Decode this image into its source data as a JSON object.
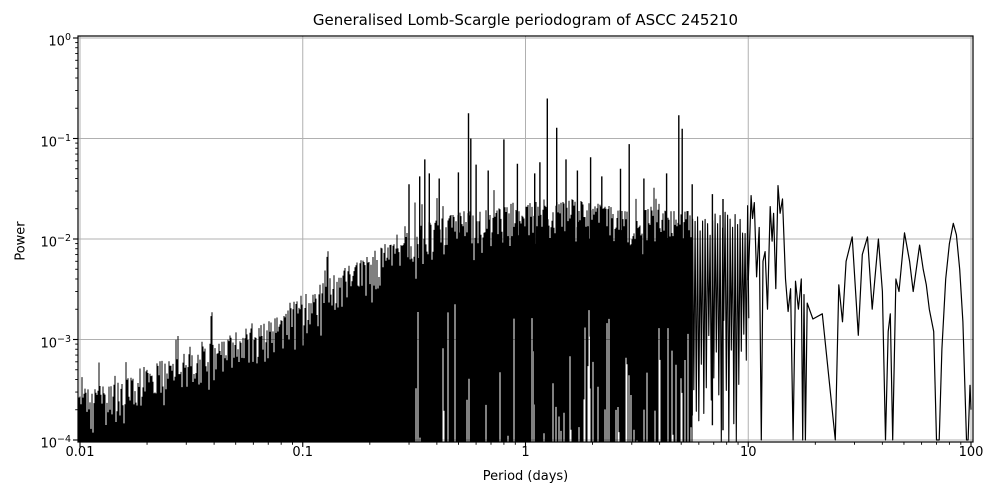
{
  "chart_data": {
    "type": "line",
    "title": "Generalised Lomb-Scargle periodogram of ASCC 245210",
    "xlabel": "Period (days)",
    "ylabel": "Power",
    "xscale": "log",
    "yscale": "log",
    "xlim": [
      0.01,
      100
    ],
    "ylim": [
      0.0001,
      1
    ],
    "grid": true,
    "legend": "none",
    "line_color": "#000000",
    "grid_color": "#b0b0b0",
    "background_color": "#ffffff",
    "xticks": [
      {
        "value": 0.01,
        "label": "0.01"
      },
      {
        "value": 0.1,
        "label": "0.1"
      },
      {
        "value": 1,
        "label": "1"
      },
      {
        "value": 10,
        "label": "10"
      },
      {
        "value": 100,
        "label": "100"
      }
    ],
    "yticks": [
      {
        "value": 1,
        "base": "10",
        "exp": "0"
      },
      {
        "value": 0.1,
        "base": "10",
        "exp": "−1"
      },
      {
        "value": 0.01,
        "base": "10",
        "exp": "−2"
      },
      {
        "value": 0.001,
        "base": "10",
        "exp": "−3"
      },
      {
        "value": 0.0001,
        "base": "10",
        "exp": "−4"
      }
    ],
    "noise_envelope_typical_peak": [
      [
        0.01,
        0.0003
      ],
      [
        0.014,
        0.0004
      ],
      [
        0.02,
        0.00055
      ],
      [
        0.03,
        0.00075
      ],
      [
        0.045,
        0.0011
      ],
      [
        0.065,
        0.0016
      ],
      [
        0.1,
        0.0028
      ],
      [
        0.15,
        0.005
      ],
      [
        0.2,
        0.0075
      ],
      [
        0.3,
        0.012
      ],
      [
        0.4,
        0.016
      ],
      [
        0.55,
        0.02
      ],
      [
        0.75,
        0.022
      ],
      [
        1.0,
        0.024
      ],
      [
        1.4,
        0.026
      ],
      [
        2.0,
        0.024
      ],
      [
        3.0,
        0.022
      ],
      [
        4.5,
        0.02
      ],
      [
        6.5,
        0.018
      ],
      [
        8.5,
        0.02
      ],
      [
        10.0,
        0.022
      ]
    ],
    "major_peaks": [
      [
        0.3,
        0.035
      ],
      [
        0.335,
        0.042
      ],
      [
        0.353,
        0.062
      ],
      [
        0.37,
        0.045
      ],
      [
        0.41,
        0.04
      ],
      [
        0.5,
        0.046
      ],
      [
        0.555,
        0.178
      ],
      [
        0.568,
        0.1
      ],
      [
        0.6,
        0.055
      ],
      [
        0.68,
        0.048
      ],
      [
        0.8,
        0.098
      ],
      [
        0.92,
        0.056
      ],
      [
        1.1,
        0.045
      ],
      [
        1.16,
        0.058
      ],
      [
        1.253,
        0.25
      ],
      [
        1.38,
        0.128
      ],
      [
        1.52,
        0.062
      ],
      [
        1.71,
        0.048
      ],
      [
        1.96,
        0.065
      ],
      [
        2.2,
        0.042
      ],
      [
        2.67,
        0.05
      ],
      [
        2.92,
        0.088
      ],
      [
        3.4,
        0.04
      ],
      [
        4.3,
        0.045
      ],
      [
        4.88,
        0.17
      ],
      [
        5.05,
        0.125
      ],
      [
        5.6,
        0.035
      ],
      [
        6.9,
        0.028
      ],
      [
        7.7,
        0.025
      ]
    ],
    "resolved_tail": [
      [
        10.0,
        0.0039
      ],
      [
        10.15,
        0.01
      ],
      [
        10.3,
        0.027
      ],
      [
        10.45,
        0.016
      ],
      [
        10.65,
        0.023
      ],
      [
        10.9,
        0.0042
      ],
      [
        11.2,
        0.013
      ],
      [
        11.45,
        0.0001
      ],
      [
        11.65,
        0.006
      ],
      [
        11.9,
        0.0075
      ],
      [
        12.2,
        0.002
      ],
      [
        12.55,
        0.021
      ],
      [
        12.8,
        0.0095
      ],
      [
        13.0,
        0.018
      ],
      [
        13.3,
        0.0032
      ],
      [
        13.6,
        0.034
      ],
      [
        13.9,
        0.018
      ],
      [
        14.25,
        0.025
      ],
      [
        14.7,
        0.004
      ],
      [
        15.1,
        0.0019
      ],
      [
        15.5,
        0.0032
      ],
      [
        15.9,
        0.0001
      ],
      [
        16.3,
        0.0038
      ],
      [
        16.8,
        0.002
      ],
      [
        17.3,
        0.004
      ],
      [
        17.55,
        0.0001
      ],
      [
        17.8,
        0.0028
      ],
      [
        18.05,
        0.0001
      ],
      [
        18.4,
        0.0023
      ],
      [
        19.5,
        0.0016
      ],
      [
        21.5,
        0.0018
      ],
      [
        24.6,
        0.0001
      ],
      [
        25.5,
        0.0035
      ],
      [
        26.5,
        0.0015
      ],
      [
        27.5,
        0.006
      ],
      [
        29.3,
        0.0105
      ],
      [
        31.2,
        0.0011
      ],
      [
        32.5,
        0.007
      ],
      [
        34.3,
        0.0105
      ],
      [
        36.0,
        0.002
      ],
      [
        38.4,
        0.01
      ],
      [
        40.0,
        0.003
      ],
      [
        41.3,
        0.0001
      ],
      [
        42.5,
        0.0012
      ],
      [
        43.4,
        0.0018
      ],
      [
        44.5,
        0.0001
      ],
      [
        46.0,
        0.004
      ],
      [
        47.5,
        0.003
      ],
      [
        50.3,
        0.0115
      ],
      [
        53.0,
        0.006
      ],
      [
        55.0,
        0.003
      ],
      [
        58.8,
        0.0087
      ],
      [
        61.0,
        0.005
      ],
      [
        63.0,
        0.0035
      ],
      [
        65.0,
        0.002
      ],
      [
        68.0,
        0.0012
      ],
      [
        70.0,
        0.0001
      ],
      [
        72.0,
        0.0001
      ],
      [
        74.0,
        0.0008
      ],
      [
        77.0,
        0.004
      ],
      [
        80.0,
        0.009
      ],
      [
        83.3,
        0.0143
      ],
      [
        86.0,
        0.011
      ],
      [
        89.0,
        0.005
      ],
      [
        92.0,
        0.0015
      ],
      [
        95.5,
        0.0001
      ],
      [
        97.0,
        0.0001
      ],
      [
        99.0,
        0.00035
      ],
      [
        100.0,
        0.0002
      ]
    ]
  }
}
